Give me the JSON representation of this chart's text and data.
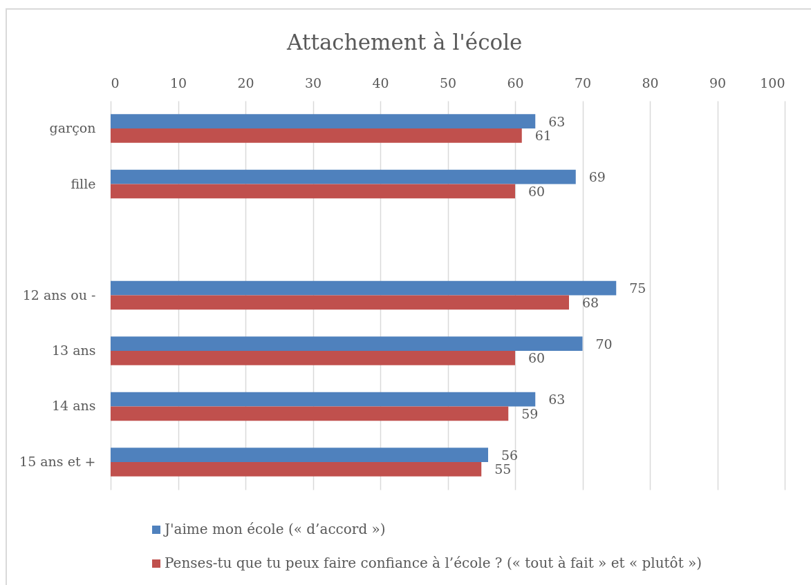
{
  "chart_data": {
    "type": "bar",
    "orientation": "horizontal",
    "title": "Attachement à l'école",
    "categories": [
      "garçon",
      "fille",
      null,
      "12 ans ou -",
      "13 ans",
      "14 ans",
      "15 ans et +"
    ],
    "series": [
      {
        "name": "J'aime mon école (« d’accord »)",
        "color": "#4f81bd",
        "values": [
          63,
          69,
          null,
          75,
          70,
          63,
          56
        ]
      },
      {
        "name": "Penses-tu que tu peux faire confiance à l’école ? (« tout à fait » et « plutôt »)",
        "color": "#c0504d",
        "values": [
          61,
          60,
          null,
          68,
          60,
          59,
          55
        ]
      }
    ],
    "xlim": [
      0,
      100
    ],
    "xticks": [
      0,
      10,
      20,
      30,
      40,
      50,
      60,
      70,
      80,
      90,
      100
    ],
    "grid": "x",
    "legend": "bottom",
    "data_labels": true
  }
}
